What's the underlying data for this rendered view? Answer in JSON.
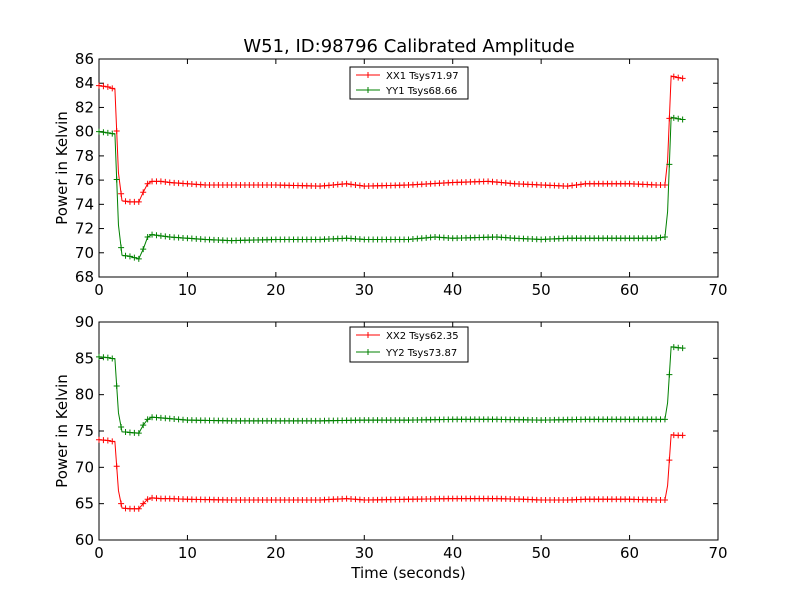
{
  "title": "W51, ID:98796 Calibrated Amplitude",
  "chart_data": [
    {
      "type": "line",
      "xlabel": "",
      "ylabel": "Power in Kelvin",
      "xlim": [
        0,
        70
      ],
      "ylim": [
        68,
        86
      ],
      "xticks": [
        0,
        10,
        20,
        30,
        40,
        50,
        60,
        70
      ],
      "yticks": [
        68,
        70,
        72,
        74,
        76,
        78,
        80,
        82,
        84,
        86
      ],
      "legend_position": "top-center",
      "series": [
        {
          "name": "XX1 Tsys71.97",
          "color": "#ff0000",
          "points": [
            [
              0,
              83.8
            ],
            [
              1,
              83.7
            ],
            [
              1.8,
              83.5
            ],
            [
              2.2,
              76.6
            ],
            [
              2.6,
              74.3
            ],
            [
              3.5,
              74.2
            ],
            [
              4.5,
              74.2
            ],
            [
              5,
              75.0
            ],
            [
              5.5,
              75.7
            ],
            [
              6,
              75.9
            ],
            [
              7,
              75.9
            ],
            [
              8,
              75.8
            ],
            [
              10,
              75.7
            ],
            [
              12,
              75.6
            ],
            [
              15,
              75.6
            ],
            [
              20,
              75.6
            ],
            [
              25,
              75.5
            ],
            [
              28,
              75.7
            ],
            [
              30,
              75.5
            ],
            [
              35,
              75.6
            ],
            [
              40,
              75.8
            ],
            [
              44,
              75.9
            ],
            [
              47,
              75.7
            ],
            [
              50,
              75.6
            ],
            [
              53,
              75.5
            ],
            [
              55,
              75.7
            ],
            [
              60,
              75.7
            ],
            [
              63,
              75.6
            ],
            [
              64,
              75.6
            ],
            [
              64.3,
              77.6
            ],
            [
              64.7,
              84.6
            ],
            [
              65.2,
              84.5
            ],
            [
              66,
              84.4
            ]
          ]
        },
        {
          "name": "YY1 Tsys68.66",
          "color": "#008000",
          "points": [
            [
              0,
              80.0
            ],
            [
              1,
              79.9
            ],
            [
              1.8,
              79.8
            ],
            [
              2.2,
              72.3
            ],
            [
              2.6,
              69.8
            ],
            [
              3.5,
              69.7
            ],
            [
              4.5,
              69.5
            ],
            [
              5,
              70.3
            ],
            [
              5.5,
              71.3
            ],
            [
              6,
              71.5
            ],
            [
              7,
              71.4
            ],
            [
              8,
              71.3
            ],
            [
              10,
              71.2
            ],
            [
              12,
              71.1
            ],
            [
              15,
              71.0
            ],
            [
              20,
              71.1
            ],
            [
              25,
              71.1
            ],
            [
              28,
              71.2
            ],
            [
              30,
              71.1
            ],
            [
              35,
              71.1
            ],
            [
              38,
              71.3
            ],
            [
              40,
              71.2
            ],
            [
              45,
              71.3
            ],
            [
              47,
              71.2
            ],
            [
              50,
              71.1
            ],
            [
              53,
              71.2
            ],
            [
              55,
              71.2
            ],
            [
              60,
              71.2
            ],
            [
              63,
              71.2
            ],
            [
              64,
              71.3
            ],
            [
              64.3,
              73.4
            ],
            [
              64.7,
              81.2
            ],
            [
              65.2,
              81.1
            ],
            [
              66,
              81.0
            ]
          ]
        }
      ]
    },
    {
      "type": "line",
      "xlabel": "Time (seconds)",
      "ylabel": "Power in Kelvin",
      "xlim": [
        0,
        70
      ],
      "ylim": [
        60,
        90
      ],
      "xticks": [
        0,
        10,
        20,
        30,
        40,
        50,
        60,
        70
      ],
      "yticks": [
        60,
        65,
        70,
        75,
        80,
        85,
        90
      ],
      "legend_position": "top-center",
      "series": [
        {
          "name": "XX2 Tsys62.35",
          "color": "#ff0000",
          "points": [
            [
              0,
              73.8
            ],
            [
              1,
              73.7
            ],
            [
              1.8,
              73.5
            ],
            [
              2.2,
              66.8
            ],
            [
              2.6,
              64.4
            ],
            [
              3.5,
              64.3
            ],
            [
              4.5,
              64.3
            ],
            [
              5,
              65.0
            ],
            [
              5.5,
              65.6
            ],
            [
              6,
              65.8
            ],
            [
              7,
              65.7
            ],
            [
              8,
              65.7
            ],
            [
              10,
              65.6
            ],
            [
              15,
              65.5
            ],
            [
              20,
              65.5
            ],
            [
              25,
              65.5
            ],
            [
              28,
              65.7
            ],
            [
              30,
              65.5
            ],
            [
              35,
              65.6
            ],
            [
              40,
              65.7
            ],
            [
              45,
              65.7
            ],
            [
              48,
              65.6
            ],
            [
              50,
              65.5
            ],
            [
              53,
              65.5
            ],
            [
              55,
              65.6
            ],
            [
              60,
              65.6
            ],
            [
              63,
              65.5
            ],
            [
              64,
              65.5
            ],
            [
              64.3,
              67.5
            ],
            [
              64.7,
              74.5
            ],
            [
              65.2,
              74.4
            ],
            [
              66,
              74.4
            ]
          ]
        },
        {
          "name": "YY2 Tsys73.87",
          "color": "#008000",
          "points": [
            [
              0,
              85.2
            ],
            [
              1,
              85.1
            ],
            [
              1.8,
              84.9
            ],
            [
              2.2,
              77.5
            ],
            [
              2.6,
              74.9
            ],
            [
              3.5,
              74.8
            ],
            [
              4.5,
              74.7
            ],
            [
              5,
              75.8
            ],
            [
              5.5,
              76.6
            ],
            [
              6,
              76.9
            ],
            [
              7,
              76.8
            ],
            [
              8,
              76.7
            ],
            [
              10,
              76.5
            ],
            [
              15,
              76.4
            ],
            [
              20,
              76.4
            ],
            [
              25,
              76.4
            ],
            [
              30,
              76.5
            ],
            [
              35,
              76.5
            ],
            [
              40,
              76.6
            ],
            [
              45,
              76.6
            ],
            [
              50,
              76.5
            ],
            [
              55,
              76.6
            ],
            [
              60,
              76.6
            ],
            [
              63,
              76.6
            ],
            [
              64,
              76.6
            ],
            [
              64.3,
              78.9
            ],
            [
              64.7,
              86.6
            ],
            [
              65.2,
              86.5
            ],
            [
              66,
              86.4
            ]
          ]
        }
      ]
    }
  ]
}
